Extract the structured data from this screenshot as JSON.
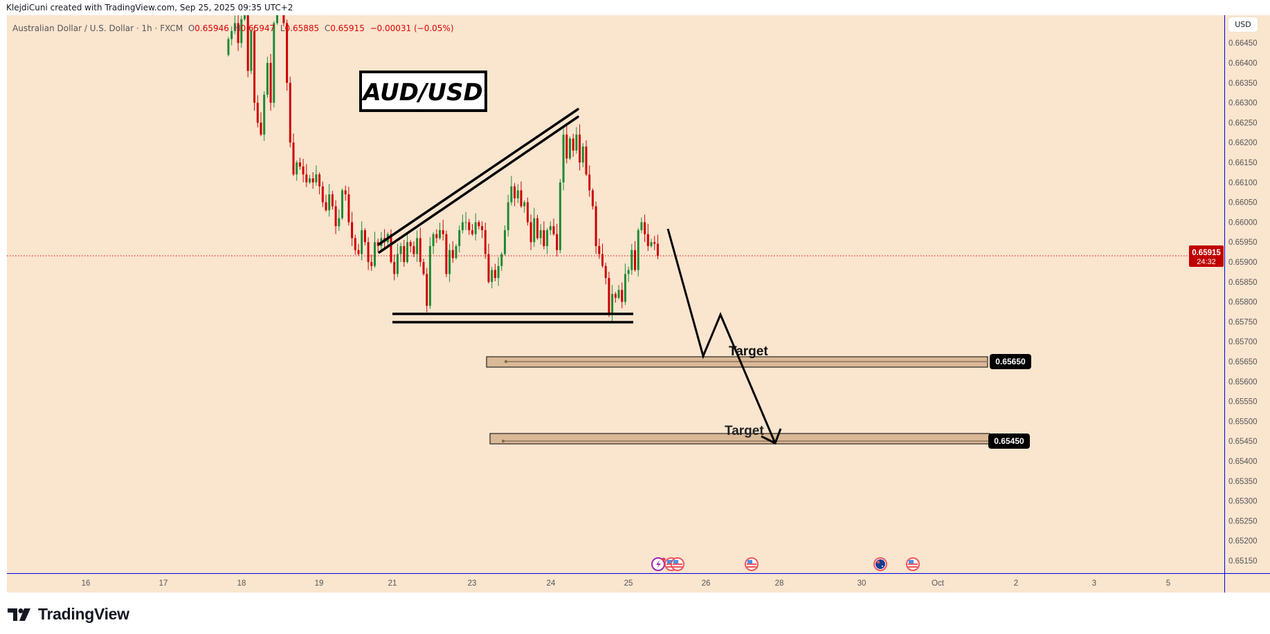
{
  "credit": "KlejdiCuni created with TradingView.com, Sep 25, 2025 09:35 UTC+2",
  "legend": {
    "symbol": "Australian Dollar / U.S. Dollar · 1h · FXCM",
    "o_label": "O",
    "o": "0.65946",
    "h_label": "H",
    "h": "0.65947",
    "l_label": "L",
    "l": "0.65885",
    "c_label": "C",
    "c": "0.65915",
    "change": "−0.00031 (−0.05%)"
  },
  "currency_button": "USD",
  "last_price": {
    "value": "0.65915",
    "countdown": "24:32"
  },
  "annotations": {
    "title": "AUD/USD",
    "target1": {
      "label": "Target",
      "price": "0.65650"
    },
    "target2": {
      "label": "Target",
      "price": "0.65450"
    }
  },
  "events": [
    "lightning-event-icon",
    "us-flag-icon",
    "us-flag-icon",
    "us-flag-icon",
    "au-flag-icon",
    "us-flag-icon"
  ],
  "logo": "TradingView",
  "colors": {
    "background": "#fae5cf",
    "up": "#1e8a34",
    "down": "#cc0000",
    "axis_line": "#0000ee",
    "zone": "#d9b996"
  },
  "chart_data": {
    "type": "candlestick",
    "title": "Australian Dollar / U.S. Dollar · 1h · FXCM",
    "ylim": [
      0.651,
      0.665
    ],
    "y_ticks": [
      "0.66450",
      "0.66400",
      "0.66350",
      "0.66300",
      "0.66250",
      "0.66200",
      "0.66150",
      "0.66100",
      "0.66050",
      "0.66000",
      "0.65950",
      "0.65900",
      "0.65850",
      "0.65800",
      "0.65750",
      "0.65700",
      "0.65650",
      "0.65600",
      "0.65550",
      "0.65500",
      "0.65450",
      "0.65400",
      "0.65350",
      "0.65300",
      "0.65250",
      "0.65200",
      "0.65150"
    ],
    "x_ticks": [
      "16",
      "17",
      "18",
      "19",
      "21",
      "23",
      "24",
      "25",
      "26",
      "28",
      "30",
      "Oct",
      "2",
      "3",
      "5"
    ],
    "closes": [
      0.6646,
      0.6648,
      0.665,
      0.6645,
      0.6651,
      0.6652,
      0.6638,
      0.6648,
      0.663,
      0.6625,
      0.6622,
      0.6632,
      0.664,
      0.663,
      0.665,
      0.6655,
      0.6658,
      0.665,
      0.6635,
      0.662,
      0.6612,
      0.6615,
      0.6614,
      0.6612,
      0.661,
      0.6611,
      0.661,
      0.6612,
      0.6609,
      0.6605,
      0.6603,
      0.6607,
      0.6604,
      0.6599,
      0.6601,
      0.6608,
      0.6607,
      0.66,
      0.6596,
      0.6593,
      0.6592,
      0.6598,
      0.6595,
      0.659,
      0.6589,
      0.6595,
      0.6594,
      0.6596,
      0.6595,
      0.6597,
      0.659,
      0.6587,
      0.6592,
      0.6594,
      0.659,
      0.6595,
      0.6594,
      0.6592,
      0.6596,
      0.659,
      0.6587,
      0.6579,
      0.6594,
      0.6597,
      0.6596,
      0.6598,
      0.6597,
      0.6587,
      0.6593,
      0.6591,
      0.6594,
      0.6598,
      0.66,
      0.66,
      0.6598,
      0.6597,
      0.66,
      0.6599,
      0.6598,
      0.6592,
      0.6585,
      0.6588,
      0.6586,
      0.6589,
      0.6592,
      0.6598,
      0.6605,
      0.6609,
      0.6606,
      0.6608,
      0.6604,
      0.6605,
      0.66,
      0.6595,
      0.6601,
      0.6596,
      0.6598,
      0.6594,
      0.6598,
      0.6599,
      0.6597,
      0.6593,
      0.661,
      0.6622,
      0.6616,
      0.6621,
      0.6618,
      0.6622,
      0.6615,
      0.6619,
      0.6612,
      0.6608,
      0.6604,
      0.6594,
      0.6592,
      0.6589,
      0.6586,
      0.6577,
      0.6582,
      0.6581,
      0.6583,
      0.658,
      0.6587,
      0.6588,
      0.6593,
      0.6588,
      0.6598,
      0.66,
      0.6597,
      0.6594,
      0.6595,
      0.65946,
      0.65915
    ],
    "target_zones": [
      0.6565,
      0.6545
    ],
    "last_price": 0.65915
  }
}
